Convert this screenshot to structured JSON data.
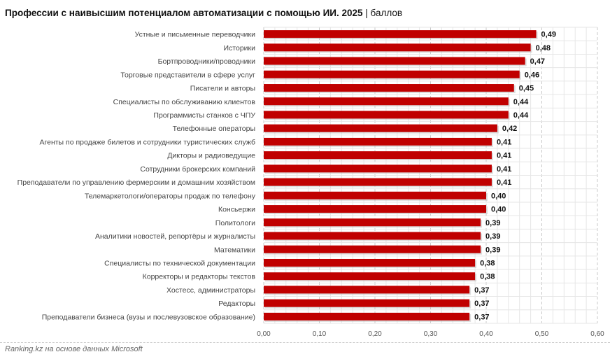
{
  "chart_data": {
    "type": "bar",
    "orientation": "horizontal",
    "title": "Профессии с наивысшим потенциалом автоматизации с помощью ИИ. 2025",
    "unit": "баллов",
    "categories": [
      "Устные и письменные переводчики",
      "Историки",
      "Бортпроводники/проводники",
      "Торговые представители в сфере услуг",
      "Писатели и авторы",
      "Специалисты по обслуживанию клиентов",
      "Программисты станков с ЧПУ",
      "Телефонные операторы",
      "Агенты по продаже билетов и сотрудники туристических служб",
      "Дикторы и радиоведущие",
      "Сотрудники брокерских компаний",
      "Преподаватели по управлению фермерским и домашним хозяйством",
      "Телемаркетологи/операторы продаж по телефону",
      "Консьержи",
      "Политологи",
      "Аналитики новостей, репортёры и журналисты",
      "Математики",
      "Специалисты по технической документации",
      "Корректоры и редакторы текстов",
      "Хостесс, администраторы",
      "Редакторы",
      "Преподаватели бизнеса (вузы и послевузовское образование)"
    ],
    "values": [
      0.49,
      0.48,
      0.47,
      0.46,
      0.45,
      0.44,
      0.44,
      0.42,
      0.41,
      0.41,
      0.41,
      0.41,
      0.4,
      0.4,
      0.39,
      0.39,
      0.39,
      0.38,
      0.38,
      0.37,
      0.37,
      0.37
    ],
    "data_labels": [
      "0,49",
      "0,48",
      "0,47",
      "0,46",
      "0,45",
      "0,44",
      "0,44",
      "0,42",
      "0,41",
      "0,41",
      "0,41",
      "0,41",
      "0,40",
      "0,40",
      "0,39",
      "0,39",
      "0,39",
      "0,38",
      "0,38",
      "0,37",
      "0,37",
      "0,37"
    ],
    "xlim": [
      0,
      0.6
    ],
    "xticks": [
      "0,00",
      "0,10",
      "0,20",
      "0,30",
      "0,40",
      "0,50",
      "0,60"
    ],
    "grid": true,
    "bar_color": "#c00000"
  },
  "footer": "Ranking.kz на основе данных Microsoft"
}
